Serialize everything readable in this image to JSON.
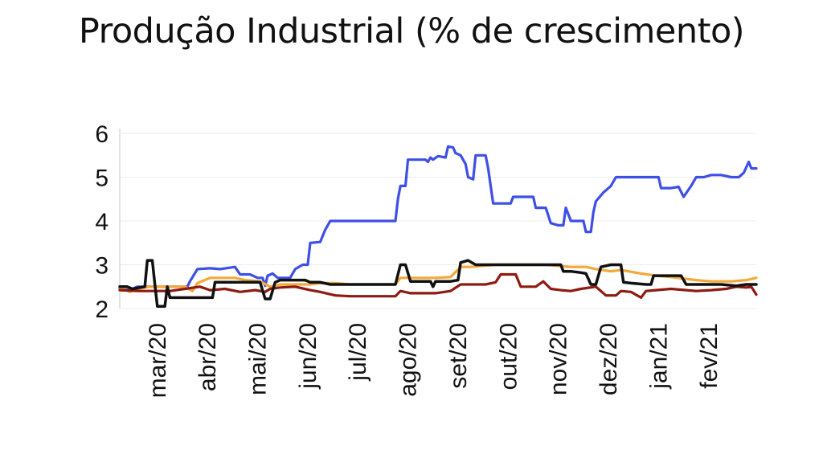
{
  "chart_data": {
    "type": "line",
    "title": "Produção Industrial (% de crescimento)",
    "xlabel": "",
    "ylabel": "",
    "ylim": [
      2,
      6
    ],
    "yticks": [
      2,
      3,
      4,
      5,
      6
    ],
    "xlim": [
      0,
      12.7
    ],
    "x_tick_labels": [
      "mar/20",
      "abr/20",
      "mai/20",
      "jun/20",
      "jul/20",
      "ago/20",
      "set/20",
      "out/20",
      "nov/20",
      "dez/20",
      "jan/21",
      "fev/21"
    ],
    "x_tick_positions": [
      0.75,
      1.75,
      2.75,
      3.75,
      4.75,
      5.75,
      6.75,
      7.75,
      8.75,
      9.75,
      10.75,
      11.75
    ],
    "grid": "horizontal",
    "legend": "none",
    "series": [
      {
        "color": "#3d4fe6",
        "points": [
          [
            0,
            2.45
          ],
          [
            0.2,
            2.42
          ],
          [
            0.35,
            2.5
          ],
          [
            0.6,
            2.5
          ],
          [
            0.9,
            2.5
          ],
          [
            1.2,
            2.5
          ],
          [
            1.35,
            2.5
          ],
          [
            1.4,
            2.62
          ],
          [
            1.55,
            2.9
          ],
          [
            1.8,
            2.92
          ],
          [
            2.0,
            2.9
          ],
          [
            2.3,
            2.95
          ],
          [
            2.4,
            2.78
          ],
          [
            2.6,
            2.78
          ],
          [
            2.75,
            2.7
          ],
          [
            2.85,
            2.7
          ],
          [
            2.9,
            2.52
          ],
          [
            2.95,
            2.75
          ],
          [
            3.05,
            2.8
          ],
          [
            3.15,
            2.7
          ],
          [
            3.4,
            2.7
          ],
          [
            3.5,
            2.9
          ],
          [
            3.65,
            3.0
          ],
          [
            3.75,
            3.0
          ],
          [
            3.8,
            3.5
          ],
          [
            4.0,
            3.52
          ],
          [
            4.1,
            3.8
          ],
          [
            4.2,
            4.0
          ],
          [
            4.5,
            4.0
          ],
          [
            4.9,
            4.0
          ],
          [
            5.3,
            4.0
          ],
          [
            5.5,
            4.0
          ],
          [
            5.55,
            4.5
          ],
          [
            5.6,
            4.8
          ],
          [
            5.7,
            4.8
          ],
          [
            5.75,
            5.4
          ],
          [
            6.0,
            5.4
          ],
          [
            6.1,
            5.4
          ],
          [
            6.15,
            5.35
          ],
          [
            6.2,
            5.45
          ],
          [
            6.25,
            5.4
          ],
          [
            6.35,
            5.48
          ],
          [
            6.5,
            5.45
          ],
          [
            6.55,
            5.7
          ],
          [
            6.65,
            5.68
          ],
          [
            6.7,
            5.55
          ],
          [
            6.8,
            5.5
          ],
          [
            6.9,
            5.3
          ],
          [
            6.95,
            5.0
          ],
          [
            7.05,
            4.95
          ],
          [
            7.1,
            5.5
          ],
          [
            7.3,
            5.5
          ],
          [
            7.35,
            5.2
          ],
          [
            7.45,
            4.4
          ],
          [
            7.65,
            4.4
          ],
          [
            7.8,
            4.4
          ],
          [
            7.85,
            4.55
          ],
          [
            8.1,
            4.55
          ],
          [
            8.25,
            4.55
          ],
          [
            8.3,
            4.3
          ],
          [
            8.5,
            4.3
          ],
          [
            8.6,
            3.95
          ],
          [
            8.75,
            3.9
          ],
          [
            8.85,
            3.9
          ],
          [
            8.9,
            4.3
          ],
          [
            9.0,
            4.0
          ],
          [
            9.1,
            4.0
          ],
          [
            9.25,
            4.0
          ],
          [
            9.3,
            3.75
          ],
          [
            9.4,
            3.75
          ],
          [
            9.45,
            4.2
          ],
          [
            9.5,
            4.45
          ],
          [
            9.65,
            4.65
          ],
          [
            9.8,
            4.8
          ],
          [
            9.9,
            5.0
          ],
          [
            10.1,
            5.0
          ],
          [
            10.5,
            5.0
          ],
          [
            10.75,
            5.0
          ],
          [
            10.8,
            4.75
          ],
          [
            11.0,
            4.75
          ],
          [
            11.15,
            4.78
          ],
          [
            11.25,
            4.55
          ],
          [
            11.4,
            4.8
          ],
          [
            11.5,
            5.0
          ],
          [
            11.65,
            5.0
          ],
          [
            11.8,
            5.05
          ],
          [
            12.0,
            5.05
          ],
          [
            12.2,
            5.0
          ],
          [
            12.35,
            5.0
          ],
          [
            12.45,
            5.1
          ],
          [
            12.55,
            5.35
          ],
          [
            12.6,
            5.2
          ],
          [
            12.7,
            5.2
          ]
        ]
      },
      {
        "color": "#f3a93a",
        "points": [
          [
            0,
            2.48
          ],
          [
            0.2,
            2.38
          ],
          [
            0.35,
            2.45
          ],
          [
            0.6,
            2.5
          ],
          [
            1.0,
            2.5
          ],
          [
            1.3,
            2.5
          ],
          [
            1.45,
            2.4
          ],
          [
            1.55,
            2.58
          ],
          [
            1.8,
            2.7
          ],
          [
            2.3,
            2.7
          ],
          [
            2.5,
            2.65
          ],
          [
            2.8,
            2.62
          ],
          [
            3.0,
            2.5
          ],
          [
            3.2,
            2.55
          ],
          [
            3.5,
            2.55
          ],
          [
            3.8,
            2.55
          ],
          [
            4.0,
            2.58
          ],
          [
            4.3,
            2.58
          ],
          [
            4.6,
            2.55
          ],
          [
            5.0,
            2.55
          ],
          [
            5.5,
            2.55
          ],
          [
            5.6,
            2.7
          ],
          [
            5.9,
            2.7
          ],
          [
            6.3,
            2.7
          ],
          [
            6.6,
            2.72
          ],
          [
            6.8,
            2.95
          ],
          [
            7.0,
            2.95
          ],
          [
            7.5,
            3.0
          ],
          [
            8.0,
            3.0
          ],
          [
            8.5,
            3.0
          ],
          [
            9.0,
            2.95
          ],
          [
            9.3,
            2.95
          ],
          [
            9.5,
            2.9
          ],
          [
            9.8,
            2.85
          ],
          [
            10.0,
            2.88
          ],
          [
            10.4,
            2.8
          ],
          [
            10.7,
            2.75
          ],
          [
            11.0,
            2.72
          ],
          [
            11.5,
            2.65
          ],
          [
            11.8,
            2.62
          ],
          [
            12.2,
            2.62
          ],
          [
            12.5,
            2.65
          ],
          [
            12.7,
            2.7
          ]
        ]
      },
      {
        "color": "#8f1a11",
        "points": [
          [
            0,
            2.42
          ],
          [
            0.4,
            2.4
          ],
          [
            0.8,
            2.4
          ],
          [
            1.0,
            2.4
          ],
          [
            1.3,
            2.45
          ],
          [
            1.6,
            2.5
          ],
          [
            1.8,
            2.42
          ],
          [
            2.1,
            2.45
          ],
          [
            2.4,
            2.38
          ],
          [
            2.7,
            2.42
          ],
          [
            2.9,
            2.38
          ],
          [
            3.0,
            2.45
          ],
          [
            3.2,
            2.48
          ],
          [
            3.5,
            2.5
          ],
          [
            3.8,
            2.42
          ],
          [
            4.0,
            2.38
          ],
          [
            4.3,
            2.3
          ],
          [
            4.6,
            2.28
          ],
          [
            5.0,
            2.28
          ],
          [
            5.5,
            2.28
          ],
          [
            5.6,
            2.4
          ],
          [
            5.8,
            2.35
          ],
          [
            6.0,
            2.35
          ],
          [
            6.3,
            2.35
          ],
          [
            6.6,
            2.4
          ],
          [
            6.8,
            2.55
          ],
          [
            7.0,
            2.55
          ],
          [
            7.3,
            2.55
          ],
          [
            7.5,
            2.6
          ],
          [
            7.6,
            2.78
          ],
          [
            7.9,
            2.78
          ],
          [
            8.0,
            2.5
          ],
          [
            8.3,
            2.5
          ],
          [
            8.45,
            2.62
          ],
          [
            8.6,
            2.45
          ],
          [
            8.8,
            2.42
          ],
          [
            9.0,
            2.4
          ],
          [
            9.2,
            2.45
          ],
          [
            9.5,
            2.5
          ],
          [
            9.7,
            2.3
          ],
          [
            9.9,
            2.3
          ],
          [
            10.0,
            2.4
          ],
          [
            10.2,
            2.38
          ],
          [
            10.4,
            2.25
          ],
          [
            10.5,
            2.4
          ],
          [
            10.7,
            2.42
          ],
          [
            11.0,
            2.45
          ],
          [
            11.3,
            2.42
          ],
          [
            11.5,
            2.4
          ],
          [
            11.8,
            2.42
          ],
          [
            12.1,
            2.45
          ],
          [
            12.3,
            2.5
          ],
          [
            12.5,
            2.48
          ],
          [
            12.6,
            2.5
          ],
          [
            12.7,
            2.32
          ]
        ]
      },
      {
        "color": "#111111",
        "points": [
          [
            0,
            2.5
          ],
          [
            0.15,
            2.5
          ],
          [
            0.25,
            2.45
          ],
          [
            0.5,
            2.5
          ],
          [
            0.55,
            3.1
          ],
          [
            0.65,
            3.1
          ],
          [
            0.7,
            2.55
          ],
          [
            0.75,
            2.05
          ],
          [
            0.9,
            2.05
          ],
          [
            0.95,
            2.5
          ],
          [
            1.0,
            2.25
          ],
          [
            1.2,
            2.25
          ],
          [
            1.5,
            2.25
          ],
          [
            1.85,
            2.25
          ],
          [
            1.9,
            2.6
          ],
          [
            2.1,
            2.6
          ],
          [
            2.4,
            2.6
          ],
          [
            2.6,
            2.6
          ],
          [
            2.8,
            2.6
          ],
          [
            2.9,
            2.22
          ],
          [
            3.0,
            2.22
          ],
          [
            3.1,
            2.6
          ],
          [
            3.2,
            2.65
          ],
          [
            3.5,
            2.65
          ],
          [
            3.7,
            2.65
          ],
          [
            3.8,
            2.6
          ],
          [
            4.0,
            2.6
          ],
          [
            4.2,
            2.55
          ],
          [
            4.5,
            2.55
          ],
          [
            5.0,
            2.55
          ],
          [
            5.5,
            2.55
          ],
          [
            5.6,
            3.0
          ],
          [
            5.7,
            3.0
          ],
          [
            5.8,
            2.62
          ],
          [
            6.1,
            2.62
          ],
          [
            6.2,
            2.62
          ],
          [
            6.25,
            2.5
          ],
          [
            6.3,
            2.62
          ],
          [
            6.6,
            2.62
          ],
          [
            6.75,
            2.65
          ],
          [
            6.8,
            3.05
          ],
          [
            6.95,
            3.1
          ],
          [
            7.1,
            3.0
          ],
          [
            7.5,
            3.0
          ],
          [
            8.0,
            3.0
          ],
          [
            8.5,
            3.0
          ],
          [
            8.8,
            3.0
          ],
          [
            8.85,
            2.85
          ],
          [
            9.0,
            2.85
          ],
          [
            9.2,
            2.82
          ],
          [
            9.3,
            2.8
          ],
          [
            9.4,
            2.55
          ],
          [
            9.5,
            2.55
          ],
          [
            9.6,
            2.95
          ],
          [
            9.8,
            3.0
          ],
          [
            10.0,
            3.0
          ],
          [
            10.05,
            2.6
          ],
          [
            10.2,
            2.58
          ],
          [
            10.5,
            2.55
          ],
          [
            10.6,
            2.55
          ],
          [
            10.65,
            2.75
          ],
          [
            10.8,
            2.75
          ],
          [
            11.1,
            2.75
          ],
          [
            11.2,
            2.75
          ],
          [
            11.3,
            2.55
          ],
          [
            11.6,
            2.55
          ],
          [
            11.9,
            2.55
          ],
          [
            12.0,
            2.55
          ],
          [
            12.3,
            2.52
          ],
          [
            12.5,
            2.55
          ],
          [
            12.7,
            2.55
          ]
        ]
      }
    ]
  }
}
